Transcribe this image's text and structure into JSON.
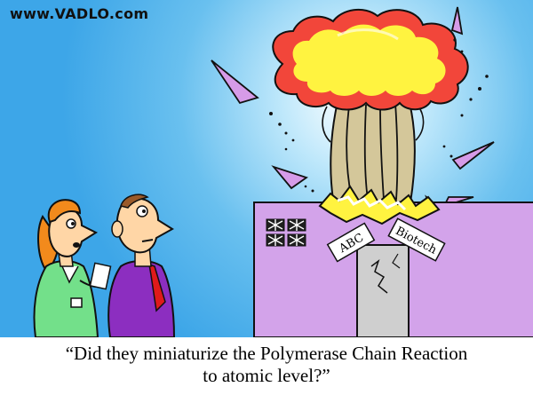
{
  "website": "www.VADLO.com",
  "building": {
    "sign_left": "ABC",
    "sign_right": "Biotech"
  },
  "caption": {
    "line1": "“Did they miniaturize the Polymerase Chain Reaction",
    "line2": "to atomic level?”"
  },
  "colors": {
    "sky": "#4fb0ec",
    "building": "#d3a3ea",
    "cloud_yellow": "#fff340",
    "cloud_red": "#f2463a",
    "stem": "#d4c79a"
  }
}
